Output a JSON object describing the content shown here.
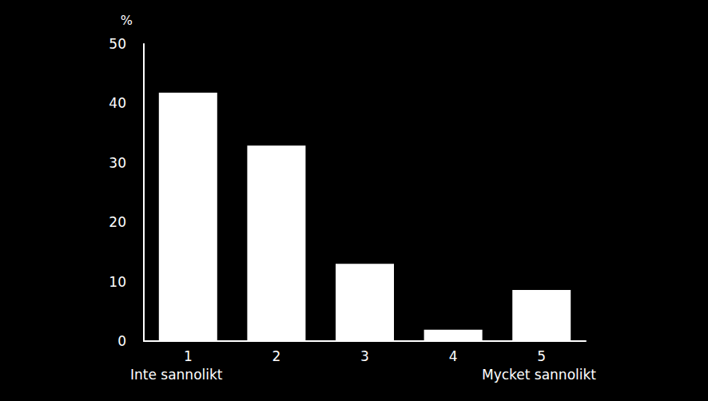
{
  "chart_data": {
    "type": "bar",
    "y_label": "%",
    "categories": [
      "1",
      "2",
      "3",
      "4",
      "5"
    ],
    "values": [
      41.8,
      32.9,
      13,
      1.9,
      8.6
    ],
    "color": "#ffffff",
    "annotations": [
      "Inte sannolikt",
      "Mycket sannolikt"
    ],
    "ylim": [
      0,
      50
    ],
    "yticks": [
      0,
      10,
      20,
      30,
      40,
      50
    ],
    "grid": false
  }
}
